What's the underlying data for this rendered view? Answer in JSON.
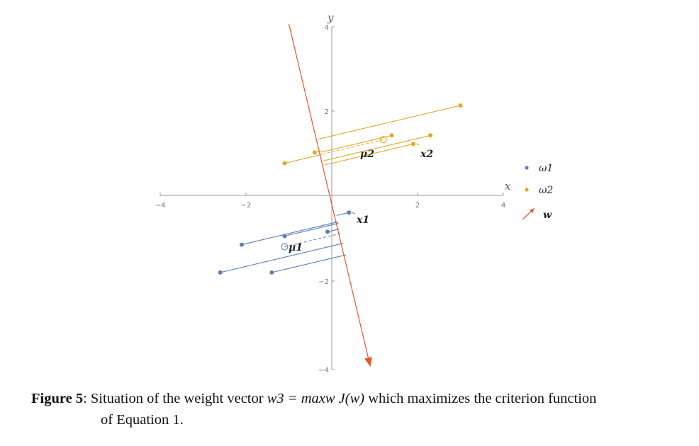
{
  "figure": {
    "x_axis_label": "x",
    "y_axis_label": "y",
    "x_ticks": [
      "−4",
      "−2",
      "2",
      "4"
    ],
    "y_ticks": [
      "4",
      "2",
      "−2",
      "−4"
    ],
    "labels": {
      "mu1": "μ1",
      "mu2": "μ2",
      "x1": "x1",
      "x2": "x2"
    },
    "legend": [
      {
        "name": "ω1",
        "color": "#5b7fb6"
      },
      {
        "name": "ω2",
        "color": "#e5a624"
      },
      {
        "name": "w",
        "color": "#e8552f"
      }
    ]
  },
  "chart_data": {
    "type": "scatter",
    "xlim": [
      -4,
      4
    ],
    "ylim": [
      -4,
      4
    ],
    "series": [
      {
        "name": "ω1",
        "color": "#5b7fb6",
        "x": [
          0.4,
          -1.1,
          -2.1,
          -2.6,
          -1.4,
          -0.1
        ],
        "y": [
          -0.4,
          -0.95,
          -1.15,
          -1.8,
          -1.8,
          -0.85
        ]
      },
      {
        "name": "ω2",
        "color": "#e5a624",
        "x": [
          3.0,
          1.4,
          2.3,
          1.9,
          -1.1,
          -0.4
        ],
        "y": [
          2.1,
          1.4,
          1.4,
          1.2,
          0.75,
          1.0
        ]
      }
    ],
    "means": {
      "μ1": [
        -1.1,
        -1.2
      ],
      "μ2": [
        1.2,
        1.3
      ]
    },
    "weight_vector": {
      "name": "w",
      "from": [
        -1.0,
        4.0
      ],
      "to": [
        0.9,
        -4.0
      ],
      "color": "#e8552f"
    }
  },
  "caption": {
    "label": "Figure 5",
    "sep": ": ",
    "text1": "Situation of the weight vector ",
    "math": "w3 = maxw J(w)",
    "text2": " which maximizes the criterion function",
    "line2": "of Equation 1."
  }
}
